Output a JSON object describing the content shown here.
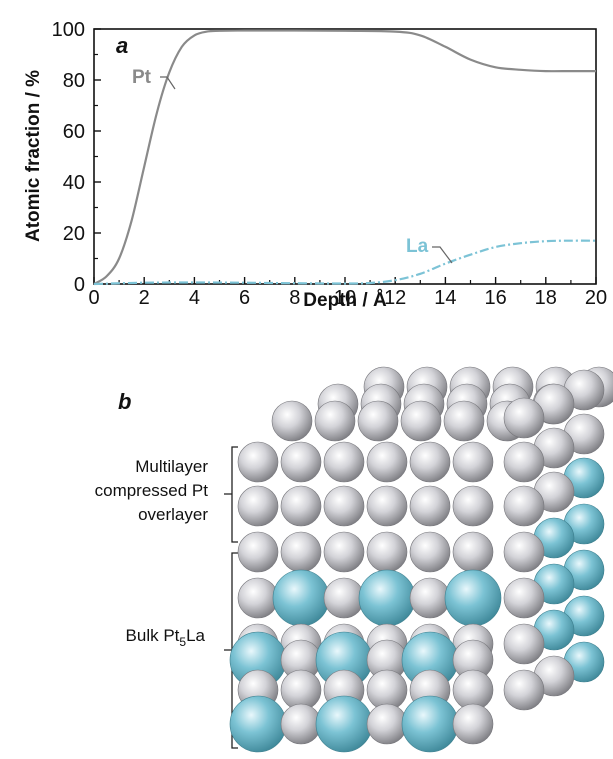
{
  "chart_data": {
    "type": "line",
    "panel_label": "a",
    "xlabel": "Depth / Å",
    "ylabel": "Atomic fraction / %",
    "xlim": [
      0,
      20
    ],
    "ylim": [
      0,
      100
    ],
    "x_ticks": [
      0,
      2,
      4,
      6,
      8,
      10,
      12,
      14,
      16,
      18,
      20
    ],
    "y_ticks": [
      0,
      20,
      40,
      60,
      80,
      100
    ],
    "grid": false,
    "series": [
      {
        "name": "Pt",
        "color": "#8a8a8a",
        "style": "solid",
        "x": [
          0,
          0.5,
          1,
          1.5,
          2,
          2.5,
          3,
          3.5,
          4,
          4.5,
          5,
          6,
          8,
          10,
          12,
          13,
          14,
          15,
          16,
          17,
          18,
          19,
          20
        ],
        "y": [
          0,
          3,
          10,
          25,
          46,
          67,
          83,
          93,
          97.5,
          99,
          99.3,
          99.4,
          99.4,
          99.3,
          99,
          97.5,
          93,
          88,
          85,
          84,
          83.5,
          83.5,
          83.5
        ]
      },
      {
        "name": "La",
        "color": "#7cc3d6",
        "style": "dashdot",
        "x": [
          0,
          2,
          4,
          6,
          8,
          10,
          11,
          12,
          13,
          14,
          15,
          16,
          17,
          18,
          19,
          20
        ],
        "y": [
          0,
          0.5,
          0.6,
          0.5,
          0.3,
          0.2,
          0.4,
          1.5,
          4,
          8,
          11.5,
          14.5,
          16,
          16.8,
          17,
          17
        ]
      }
    ]
  },
  "diagram": {
    "panel_label": "b",
    "top_label_lines": [
      "Multilayer",
      "compressed Pt",
      "overlayer"
    ],
    "bottom_label_main": "Bulk Pt",
    "bottom_label_sub": "5",
    "bottom_label_tail": "La",
    "pt_color": "#cdcdd3",
    "la_color": "#79c1d1"
  }
}
